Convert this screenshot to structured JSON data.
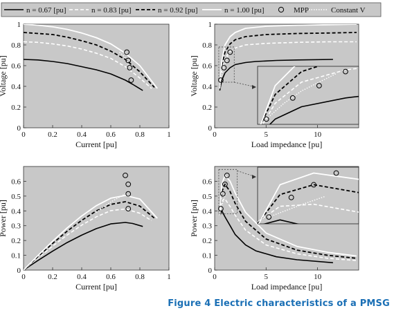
{
  "caption": "Figure 4 Electric characteristics of a PMSG",
  "legend": {
    "items": [
      {
        "label": "n = 0.67 [pu]",
        "style": "solid-black"
      },
      {
        "label": "n = 0.83 [pu]",
        "style": "dashed-white"
      },
      {
        "label": "n = 0.92 [pu]",
        "style": "dashed-black"
      },
      {
        "label": "n = 1.00 [pu]",
        "style": "solid-white"
      },
      {
        "label": "MPP",
        "style": "circle"
      },
      {
        "label": "Constant V",
        "style": "dotted-white"
      }
    ]
  },
  "colors": {
    "panel_bg": "#c8c8c8",
    "caption": "#1a6fb5",
    "black_series": "#000000",
    "white_series": "#ffffff"
  },
  "chart_data": [
    {
      "type": "line",
      "xlabel": "Current [pu]",
      "ylabel": "Voltage [pu]",
      "xlim": [
        0,
        1
      ],
      "ylim": [
        0,
        1
      ],
      "xticks": [
        "0",
        "0.2",
        "0.4",
        "0.6",
        "0.8",
        "1"
      ],
      "yticks": [
        "0",
        "0.2",
        "0.4",
        "0.6",
        "0.8",
        "1"
      ],
      "series": [
        {
          "name": "n = 0.67 [pu]",
          "x": [
            0,
            0.1,
            0.2,
            0.3,
            0.4,
            0.5,
            0.6,
            0.7,
            0.75,
            0.82
          ],
          "y": [
            0.66,
            0.655,
            0.64,
            0.62,
            0.59,
            0.56,
            0.52,
            0.46,
            0.42,
            0.36
          ]
        },
        {
          "name": "n = 0.83 [pu]",
          "x": [
            0,
            0.1,
            0.2,
            0.3,
            0.4,
            0.5,
            0.6,
            0.7,
            0.8,
            0.88
          ],
          "y": [
            0.83,
            0.825,
            0.81,
            0.79,
            0.76,
            0.72,
            0.67,
            0.59,
            0.48,
            0.38
          ]
        },
        {
          "name": "n = 0.92 [pu]",
          "x": [
            0,
            0.1,
            0.2,
            0.3,
            0.4,
            0.5,
            0.6,
            0.7,
            0.8,
            0.9
          ],
          "y": [
            0.92,
            0.91,
            0.9,
            0.875,
            0.84,
            0.8,
            0.74,
            0.66,
            0.54,
            0.39
          ]
        },
        {
          "name": "n = 1.00 [pu]",
          "x": [
            0,
            0.1,
            0.2,
            0.3,
            0.4,
            0.5,
            0.6,
            0.7,
            0.8,
            0.92
          ],
          "y": [
            1.0,
            0.99,
            0.975,
            0.95,
            0.915,
            0.87,
            0.81,
            0.72,
            0.6,
            0.38
          ]
        },
        {
          "name": "MPP",
          "x": [
            0.71,
            0.72,
            0.73,
            0.74
          ],
          "y": [
            0.73,
            0.65,
            0.58,
            0.46
          ]
        },
        {
          "name": "Constant V",
          "x": [
            0.66,
            0.69,
            0.71,
            0.72,
            0.73
          ],
          "y": [
            0.73,
            0.69,
            0.65,
            0.61,
            0.58
          ]
        }
      ]
    },
    {
      "type": "line",
      "xlabel": "Load impedance [pu]",
      "ylabel": "Voltage [pu]",
      "xlim": [
        0,
        14
      ],
      "ylim": [
        0,
        1
      ],
      "xticks": [
        "0",
        "5",
        "10"
      ],
      "yticks": [
        "0",
        "0.2",
        "0.4",
        "0.6",
        "0.8",
        "1"
      ],
      "series": [
        {
          "name": "n = 0.67 [pu]",
          "x": [
            0.5,
            0.7,
            1,
            1.5,
            2,
            3,
            4,
            6,
            8,
            11.5
          ],
          "y": [
            0.36,
            0.46,
            0.53,
            0.58,
            0.61,
            0.63,
            0.64,
            0.65,
            0.655,
            0.66
          ]
        },
        {
          "name": "n = 0.83 [pu]",
          "x": [
            0.5,
            0.7,
            1,
            1.5,
            2,
            3,
            5,
            8,
            11,
            13.8
          ],
          "y": [
            0.38,
            0.55,
            0.67,
            0.74,
            0.77,
            0.8,
            0.815,
            0.825,
            0.83,
            0.83
          ]
        },
        {
          "name": "n = 0.92 [pu]",
          "x": [
            0.5,
            0.7,
            1,
            1.5,
            2,
            3,
            5,
            8,
            11,
            13.8
          ],
          "y": [
            0.39,
            0.6,
            0.73,
            0.81,
            0.85,
            0.88,
            0.9,
            0.91,
            0.915,
            0.92
          ]
        },
        {
          "name": "n = 1.00 [pu]",
          "x": [
            0.5,
            0.7,
            1,
            1.5,
            2,
            3,
            5,
            8,
            11,
            13.8
          ],
          "y": [
            0.38,
            0.65,
            0.8,
            0.88,
            0.92,
            0.96,
            0.98,
            0.99,
            0.995,
            1.0
          ]
        },
        {
          "name": "MPP",
          "x": [
            0.6,
            0.9,
            1.2,
            1.5
          ],
          "y": [
            0.46,
            0.58,
            0.65,
            0.73
          ]
        },
        {
          "name": "Constant V",
          "x": [
            0.6,
            0.8,
            1.0,
            1.2,
            1.4
          ],
          "y": [
            0.46,
            0.55,
            0.62,
            0.67,
            0.72
          ]
        }
      ]
    },
    {
      "type": "line",
      "xlabel": "Current [pu]",
      "ylabel": "Power [pu]",
      "xlim": [
        0,
        1
      ],
      "ylim": [
        0,
        0.7
      ],
      "xticks": [
        "0",
        "0.2",
        "0.4",
        "0.6",
        "0.8",
        "1"
      ],
      "yticks": [
        "0",
        "0.1",
        "0.2",
        "0.3",
        "0.4",
        "0.5",
        "0.6"
      ],
      "series": [
        {
          "name": "n = 0.67 [pu]",
          "x": [
            0,
            0.1,
            0.2,
            0.3,
            0.4,
            0.5,
            0.6,
            0.7,
            0.75,
            0.82
          ],
          "y": [
            0,
            0.066,
            0.128,
            0.186,
            0.236,
            0.28,
            0.312,
            0.322,
            0.315,
            0.295
          ]
        },
        {
          "name": "n = 0.83 [pu]",
          "x": [
            0,
            0.1,
            0.2,
            0.3,
            0.4,
            0.5,
            0.6,
            0.7,
            0.8,
            0.88
          ],
          "y": [
            0,
            0.083,
            0.162,
            0.237,
            0.304,
            0.36,
            0.402,
            0.413,
            0.384,
            0.334
          ]
        },
        {
          "name": "n = 0.92 [pu]",
          "x": [
            0,
            0.1,
            0.2,
            0.3,
            0.4,
            0.5,
            0.6,
            0.7,
            0.8,
            0.9
          ],
          "y": [
            0,
            0.091,
            0.18,
            0.263,
            0.336,
            0.4,
            0.444,
            0.462,
            0.432,
            0.351
          ]
        },
        {
          "name": "n = 1.00 [pu]",
          "x": [
            0,
            0.1,
            0.2,
            0.3,
            0.4,
            0.5,
            0.6,
            0.7,
            0.8,
            0.92
          ],
          "y": [
            0,
            0.099,
            0.195,
            0.285,
            0.366,
            0.435,
            0.486,
            0.504,
            0.48,
            0.35
          ]
        },
        {
          "name": "MPP",
          "x": [
            0.7,
            0.72,
            0.72,
            0.72
          ],
          "y": [
            0.64,
            0.58,
            0.515,
            0.415
          ]
        },
        {
          "name": "Constant V",
          "x": [
            0.5,
            0.6,
            0.7
          ],
          "y": [
            0.39,
            0.46,
            0.515
          ]
        }
      ]
    },
    {
      "type": "line",
      "xlabel": "Load impedance [pu]",
      "ylabel": "Power [pu]",
      "xlim": [
        0,
        14
      ],
      "ylim": [
        0,
        0.7
      ],
      "xticks": [
        "0",
        "5",
        "10"
      ],
      "yticks": [
        "0",
        "0.1",
        "0.2",
        "0.3",
        "0.4",
        "0.5",
        "0.6"
      ],
      "series": [
        {
          "name": "n = 0.67 [pu]",
          "x": [
            0.5,
            0.7,
            1,
            1.5,
            2,
            3,
            4,
            6,
            8,
            11.5
          ],
          "y": [
            0.37,
            0.4,
            0.36,
            0.3,
            0.24,
            0.17,
            0.13,
            0.09,
            0.07,
            0.05
          ]
        },
        {
          "name": "n = 0.83 [pu]",
          "x": [
            0.5,
            0.7,
            1,
            1.5,
            2,
            3,
            5,
            8,
            11,
            13.8
          ],
          "y": [
            0.39,
            0.47,
            0.48,
            0.43,
            0.37,
            0.27,
            0.17,
            0.11,
            0.08,
            0.065
          ]
        },
        {
          "name": "n = 0.92 [pu]",
          "x": [
            0.5,
            0.7,
            1,
            1.5,
            2,
            3,
            5,
            8,
            11,
            13.8
          ],
          "y": [
            0.38,
            0.53,
            0.58,
            0.53,
            0.45,
            0.33,
            0.21,
            0.135,
            0.1,
            0.08
          ]
        },
        {
          "name": "n = 1.00 [pu]",
          "x": [
            0.5,
            0.7,
            1,
            1.5,
            2,
            3,
            5,
            8,
            11,
            13.8
          ],
          "y": [
            0.37,
            0.58,
            0.64,
            0.6,
            0.52,
            0.39,
            0.25,
            0.16,
            0.12,
            0.095
          ]
        },
        {
          "name": "MPP",
          "x": [
            0.6,
            0.8,
            1.0,
            1.2
          ],
          "y": [
            0.415,
            0.515,
            0.58,
            0.64
          ]
        },
        {
          "name": "Constant V",
          "x": [
            0.6,
            0.9,
            1.1
          ],
          "y": [
            0.415,
            0.48,
            0.52
          ]
        }
      ]
    }
  ]
}
